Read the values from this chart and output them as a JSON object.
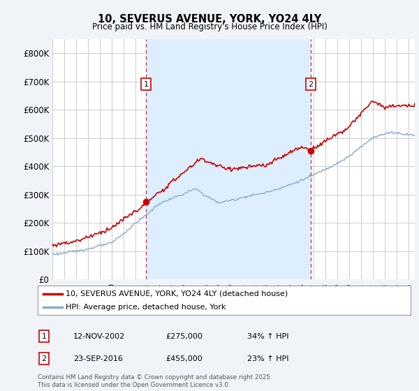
{
  "title": "10, SEVERUS AVENUE, YORK, YO24 4LY",
  "subtitle": "Price paid vs. HM Land Registry's House Price Index (HPI)",
  "ylim": [
    0,
    850000
  ],
  "yticks": [
    0,
    100000,
    200000,
    300000,
    400000,
    500000,
    600000,
    700000,
    800000
  ],
  "ytick_labels": [
    "£0",
    "£100K",
    "£200K",
    "£300K",
    "£400K",
    "£500K",
    "£600K",
    "£700K",
    "£800K"
  ],
  "line1_color": "#cc0000",
  "line2_color": "#88aacc",
  "vline_color": "#cc0000",
  "background_color": "#f0f4f8",
  "plot_bg_color": "#ffffff",
  "shade_color": "#ddeeff",
  "grid_color": "#cccccc",
  "purchase1_x": 2002.87,
  "purchase1_y": 275000,
  "purchase2_x": 2016.73,
  "purchase2_y": 455000,
  "legend_line1": "10, SEVERUS AVENUE, YORK, YO24 4LY (detached house)",
  "legend_line2": "HPI: Average price, detached house, York",
  "annotation1_date": "12-NOV-2002",
  "annotation1_price": "£275,000",
  "annotation1_hpi": "34% ↑ HPI",
  "annotation2_date": "23-SEP-2016",
  "annotation2_price": "£455,000",
  "annotation2_hpi": "23% ↑ HPI",
  "footer": "Contains HM Land Registry data © Crown copyright and database right 2025.\nThis data is licensed under the Open Government Licence v3.0.",
  "xmin": 1995,
  "xmax": 2025.5
}
